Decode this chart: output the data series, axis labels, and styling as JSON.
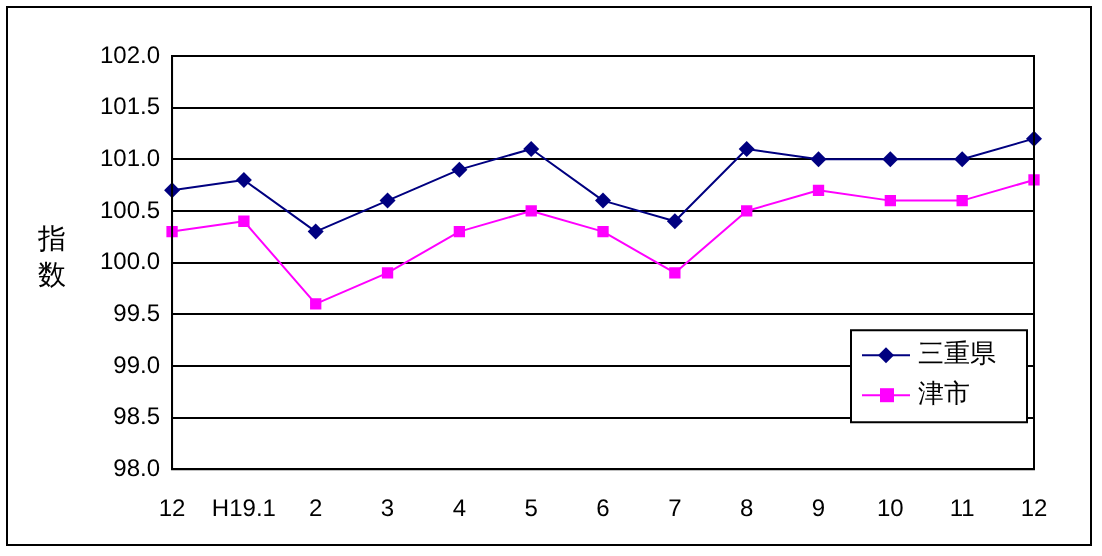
{
  "chart_data": {
    "type": "line",
    "ylabel": "指数",
    "categories": [
      "12",
      "H19.1",
      "2",
      "3",
      "4",
      "5",
      "6",
      "7",
      "8",
      "9",
      "10",
      "11",
      "12"
    ],
    "series": [
      {
        "name": "三重県",
        "color": "#000080",
        "marker": "diamond",
        "values": [
          100.7,
          100.8,
          100.3,
          100.6,
          100.9,
          101.1,
          100.6,
          100.4,
          101.1,
          101.0,
          101.0,
          101.0,
          101.2
        ]
      },
      {
        "name": "津市",
        "color": "#ff00ff",
        "marker": "square",
        "values": [
          100.3,
          100.4,
          99.6,
          99.9,
          100.3,
          100.5,
          100.3,
          99.9,
          100.5,
          100.7,
          100.6,
          100.6,
          100.8
        ]
      }
    ],
    "ylim": [
      98,
      102
    ],
    "yticks": [
      {
        "value": 98,
        "label": "98.0"
      },
      {
        "value": 98.5,
        "label": "98.5"
      },
      {
        "value": 99,
        "label": "99.0"
      },
      {
        "value": 99.5,
        "label": "99.5"
      },
      {
        "value": 100,
        "label": "100.0"
      },
      {
        "value": 100.5,
        "label": "100.5"
      },
      {
        "value": 101,
        "label": "101.0"
      },
      {
        "value": 101.5,
        "label": "101.5"
      },
      {
        "value": 102,
        "label": "102.0"
      }
    ],
    "grid": "y",
    "legend": "bottom right",
    "line_style": "solid"
  }
}
